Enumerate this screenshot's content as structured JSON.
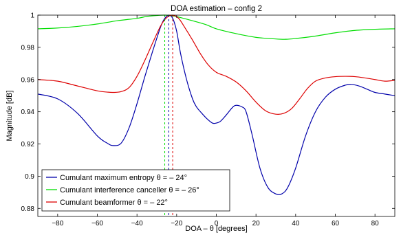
{
  "chart_data": {
    "type": "line",
    "title": "DOA estimation – config 2",
    "xlabel": "DOA – θ [degrees]",
    "ylabel": "Magnitude [dB]",
    "xlim": [
      -90,
      90
    ],
    "ylim": [
      0.875,
      1.0
    ],
    "xticks": [
      -80,
      -60,
      -40,
      -20,
      0,
      20,
      40,
      60,
      80
    ],
    "xtick_labels": [
      "−80",
      "−60",
      "−40",
      "−20",
      "0",
      "20",
      "40",
      "60",
      "80"
    ],
    "yticks": [
      0.88,
      0.9,
      0.92,
      0.94,
      0.96,
      0.98,
      1.0
    ],
    "ytick_labels": [
      "0.88",
      "0.9",
      "0.92",
      "0.94",
      "0.96",
      "0.98",
      "1"
    ],
    "grid": false,
    "legend_position": "bottom-left",
    "series": [
      {
        "name": "Cumulant maximum entropy θ = – 24°",
        "color": "#0000aa",
        "peak_x": -24,
        "x": [
          -90,
          -80,
          -70,
          -60,
          -55,
          -52,
          -48,
          -44,
          -40,
          -36,
          -32,
          -28,
          -26,
          -24,
          -22,
          -20,
          -18,
          -15,
          -12,
          -10,
          -8,
          -5,
          -2,
          0,
          2,
          5,
          8,
          10,
          13,
          15,
          18,
          22,
          26,
          30,
          33,
          36,
          40,
          45,
          50,
          55,
          60,
          65,
          68,
          72,
          76,
          80,
          85,
          90
        ],
        "y": [
          0.951,
          0.948,
          0.939,
          0.925,
          0.9205,
          0.919,
          0.9205,
          0.93,
          0.945,
          0.962,
          0.978,
          0.993,
          0.998,
          1.0,
          0.998,
          0.99,
          0.976,
          0.96,
          0.948,
          0.943,
          0.94,
          0.936,
          0.933,
          0.933,
          0.934,
          0.938,
          0.9425,
          0.944,
          0.943,
          0.94,
          0.926,
          0.905,
          0.893,
          0.889,
          0.889,
          0.893,
          0.905,
          0.925,
          0.94,
          0.949,
          0.954,
          0.9565,
          0.957,
          0.956,
          0.954,
          0.952,
          0.951,
          0.95
        ]
      },
      {
        "name": "Cumulant interference canceller θ = – 26°",
        "color": "#00dd00",
        "peak_x": -26,
        "x": [
          -90,
          -80,
          -70,
          -60,
          -50,
          -40,
          -35,
          -30,
          -26,
          -22,
          -18,
          -12,
          -5,
          0,
          10,
          20,
          30,
          35,
          40,
          50,
          60,
          70,
          80,
          90
        ],
        "y": [
          0.9915,
          0.992,
          0.993,
          0.9945,
          0.9965,
          0.998,
          0.9992,
          0.9998,
          1.0,
          0.9996,
          0.9985,
          0.9965,
          0.994,
          0.9915,
          0.9885,
          0.9862,
          0.9852,
          0.985,
          0.9855,
          0.987,
          0.989,
          0.9905,
          0.9912,
          0.9915
        ]
      },
      {
        "name": "Cumulant beamformer θ = – 22°",
        "color": "#dd0000",
        "peak_x": -22,
        "x": [
          -90,
          -80,
          -70,
          -60,
          -55,
          -52,
          -48,
          -44,
          -40,
          -36,
          -32,
          -28,
          -25,
          -22,
          -19,
          -16,
          -12,
          -8,
          -4,
          0,
          5,
          10,
          15,
          20,
          25,
          30,
          34,
          38,
          42,
          46,
          50,
          55,
          60,
          65,
          70,
          75,
          80,
          85,
          90
        ],
        "y": [
          0.96,
          0.959,
          0.956,
          0.953,
          0.9522,
          0.952,
          0.9525,
          0.955,
          0.962,
          0.972,
          0.983,
          0.9935,
          0.9985,
          1.0,
          0.998,
          0.9925,
          0.9845,
          0.976,
          0.969,
          0.9645,
          0.962,
          0.9585,
          0.953,
          0.946,
          0.9405,
          0.9385,
          0.939,
          0.942,
          0.948,
          0.9545,
          0.959,
          0.961,
          0.9618,
          0.962,
          0.9618,
          0.961,
          0.96,
          0.959,
          0.9595
        ]
      }
    ]
  }
}
